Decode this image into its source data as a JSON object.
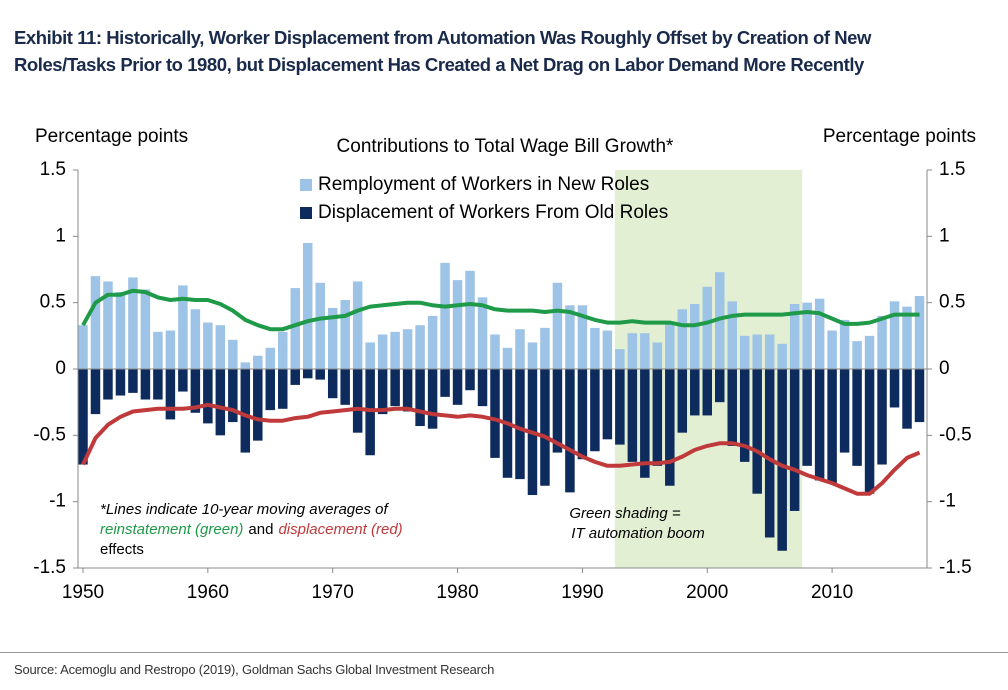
{
  "chart_data": {
    "type": "bar",
    "title": "Exhibit 11: Historically, Worker Displacement from Automation Was Roughly Offset by Creation of New Roles/Tasks Prior to 1980, but Displacement Has Created a Net Drag on Labor Demand More Recently",
    "subtitle": "Contributions to Total Wage Bill Growth*",
    "ylabel": "Percentage points",
    "y2label": "Percentage points",
    "source": "Source: Acemoglu and Restropo (2019), Goldman Sachs Global Investment Research",
    "annotations": {
      "note": [
        "*Lines indicate 10-year moving averages of",
        "reinstatement (green)",
        "and",
        "displacement (red)",
        "effects"
      ],
      "shading_note": [
        "Green shading =",
        "IT automation boom"
      ]
    },
    "highlight": {
      "x": [
        1992.6,
        2007.6
      ],
      "color": "#e3efd3"
    },
    "x": [
      1950,
      1951,
      1952,
      1953,
      1954,
      1955,
      1956,
      1957,
      1958,
      1959,
      1960,
      1961,
      1962,
      1963,
      1964,
      1965,
      1966,
      1967,
      1968,
      1969,
      1970,
      1971,
      1972,
      1973,
      1974,
      1975,
      1976,
      1977,
      1978,
      1979,
      1980,
      1981,
      1982,
      1983,
      1984,
      1985,
      1986,
      1987,
      1988,
      1989,
      1990,
      1991,
      1992,
      1993,
      1994,
      1995,
      1996,
      1997,
      1998,
      1999,
      2000,
      2001,
      2002,
      2003,
      2004,
      2005,
      2006,
      2007,
      2008,
      2009,
      2010,
      2011,
      2012,
      2013,
      2014,
      2015,
      2016,
      2017
    ],
    "xlim": [
      1949.6,
      2017.6
    ],
    "xticks": [
      1950,
      1960,
      1970,
      1980,
      1990,
      2000,
      2010
    ],
    "ylim": [
      -1.5,
      1.5
    ],
    "yticks": [
      1.5,
      1,
      0.5,
      0,
      -0.5,
      -1,
      -1.5
    ],
    "y2lim": [
      -1.5,
      1.5
    ],
    "y2ticks": [
      1.5,
      1,
      0.5,
      0,
      -0.5,
      -1,
      -1.5
    ],
    "series": [
      {
        "name": "Remployment of Workers in New Roles",
        "type": "bar",
        "color": "#9dc3e6",
        "values": [
          0.33,
          0.7,
          0.66,
          0.58,
          0.69,
          0.6,
          0.28,
          0.29,
          0.63,
          0.45,
          0.35,
          0.33,
          0.22,
          0.05,
          0.1,
          0.16,
          0.28,
          0.61,
          0.95,
          0.65,
          0.46,
          0.52,
          0.66,
          0.2,
          0.26,
          0.28,
          0.3,
          0.33,
          0.4,
          0.8,
          0.67,
          0.74,
          0.54,
          0.26,
          0.16,
          0.3,
          0.2,
          0.31,
          0.65,
          0.48,
          0.48,
          0.31,
          0.29,
          0.15,
          0.27,
          0.27,
          0.2,
          0.35,
          0.45,
          0.49,
          0.62,
          0.73,
          0.51,
          0.25,
          0.26,
          0.26,
          0.19,
          0.49,
          0.5,
          0.53,
          0.29,
          0.37,
          0.21,
          0.25,
          0.4,
          0.51,
          0.47,
          0.55
        ]
      },
      {
        "name": "Displacement of Workers From Old Roles",
        "type": "bar",
        "color": "#0d2b5c",
        "values": [
          -0.72,
          -0.34,
          -0.23,
          -0.2,
          -0.18,
          -0.23,
          -0.23,
          -0.38,
          -0.17,
          -0.33,
          -0.41,
          -0.5,
          -0.4,
          -0.63,
          -0.54,
          -0.31,
          -0.3,
          -0.12,
          -0.07,
          -0.08,
          -0.22,
          -0.27,
          -0.48,
          -0.65,
          -0.34,
          -0.28,
          -0.32,
          -0.43,
          -0.45,
          -0.21,
          -0.27,
          -0.16,
          -0.28,
          -0.67,
          -0.82,
          -0.83,
          -0.95,
          -0.88,
          -0.63,
          -0.93,
          -0.68,
          -0.62,
          -0.53,
          -0.57,
          -0.7,
          -0.82,
          -0.73,
          -0.88,
          -0.48,
          -0.35,
          -0.35,
          -0.25,
          -0.58,
          -0.7,
          -0.94,
          -1.27,
          -1.37,
          -1.07,
          -0.73,
          -0.84,
          -0.86,
          -0.63,
          -0.73,
          -0.94,
          -0.72,
          -0.29,
          -0.45,
          -0.4
        ]
      },
      {
        "type": "line",
        "color": "#1e9a48",
        "values": [
          0.33,
          0.5,
          0.56,
          0.56,
          0.59,
          0.58,
          0.54,
          0.52,
          0.53,
          0.52,
          0.52,
          0.49,
          0.44,
          0.37,
          0.33,
          0.3,
          0.3,
          0.33,
          0.36,
          0.38,
          0.39,
          0.4,
          0.44,
          0.47,
          0.48,
          0.49,
          0.5,
          0.5,
          0.48,
          0.47,
          0.48,
          0.49,
          0.48,
          0.45,
          0.44,
          0.44,
          0.44,
          0.43,
          0.44,
          0.43,
          0.4,
          0.37,
          0.35,
          0.35,
          0.36,
          0.35,
          0.35,
          0.35,
          0.33,
          0.33,
          0.35,
          0.38,
          0.4,
          0.41,
          0.41,
          0.41,
          0.41,
          0.42,
          0.43,
          0.42,
          0.38,
          0.34,
          0.34,
          0.35,
          0.38,
          0.41,
          0.41,
          0.41
        ]
      },
      {
        "type": "line",
        "color": "#c0393b",
        "values": [
          -0.72,
          -0.52,
          -0.42,
          -0.36,
          -0.32,
          -0.31,
          -0.3,
          -0.3,
          -0.3,
          -0.29,
          -0.27,
          -0.29,
          -0.31,
          -0.35,
          -0.38,
          -0.39,
          -0.39,
          -0.37,
          -0.36,
          -0.33,
          -0.32,
          -0.31,
          -0.3,
          -0.31,
          -0.31,
          -0.3,
          -0.3,
          -0.32,
          -0.34,
          -0.35,
          -0.36,
          -0.35,
          -0.36,
          -0.38,
          -0.41,
          -0.45,
          -0.48,
          -0.51,
          -0.56,
          -0.61,
          -0.66,
          -0.7,
          -0.73,
          -0.73,
          -0.72,
          -0.71,
          -0.71,
          -0.7,
          -0.66,
          -0.61,
          -0.58,
          -0.56,
          -0.56,
          -0.58,
          -0.62,
          -0.68,
          -0.73,
          -0.76,
          -0.8,
          -0.83,
          -0.86,
          -0.9,
          -0.94,
          -0.94,
          -0.86,
          -0.76,
          -0.67,
          -0.63
        ]
      }
    ]
  }
}
